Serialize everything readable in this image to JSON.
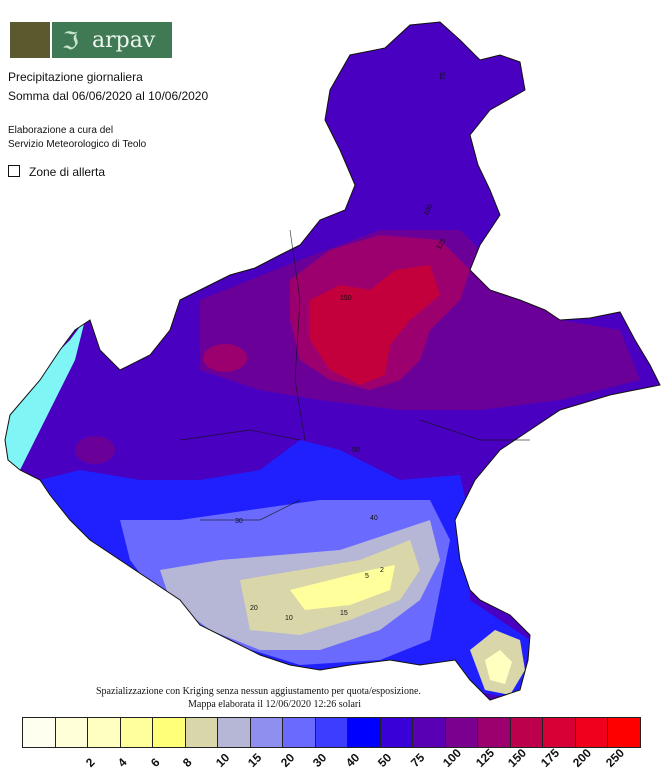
{
  "header": {
    "logo_text": "arpav",
    "logo_icons": [
      "lion-of-saint-mark-icon",
      "arpav-wave-icon"
    ],
    "title": "Precipitazione giornaliera",
    "subtitle": "Somma dal 06/06/2020 al 10/06/2020",
    "credit_line1": "Elaborazione a cura del",
    "credit_line2": "Servizio Meteorologico di Teolo",
    "alert_zones_label": "Zone di allerta"
  },
  "footer": {
    "note_line1": "Spazializzazione con Kriging senza nessun aggiustamento per quota/esposizione.",
    "note_line2": "Mappa elaborata il 12/06/2020 12:26 solari"
  },
  "legend": {
    "colors": [
      "#fffff0",
      "#ffffd8",
      "#ffffc0",
      "#ffff9c",
      "#ffff78",
      "#d9d7aa",
      "#b6b7d6",
      "#8f8ff0",
      "#6a6aff",
      "#3d3dff",
      "#0000ff",
      "#3a00d8",
      "#5a00b4",
      "#7a0090",
      "#9c006e",
      "#bd004c",
      "#d60036",
      "#f0001c",
      "#ff0000"
    ],
    "labels": [
      "2",
      "4",
      "6",
      "8",
      "10",
      "15",
      "20",
      "30",
      "40",
      "50",
      "75",
      "100",
      "125",
      "150",
      "175",
      "200",
      "250"
    ]
  },
  "map": {
    "contour_labels": [
      "75",
      "100",
      "125",
      "150",
      "50",
      "40",
      "30",
      "20",
      "15",
      "10",
      "5",
      "2"
    ],
    "colors": {
      "lake": "#7ff5f5",
      "high": "#c4003c",
      "mid": "#6a0098",
      "base": "#4a00c0",
      "low": "#2020ff",
      "dry": "#fffcc8"
    }
  }
}
